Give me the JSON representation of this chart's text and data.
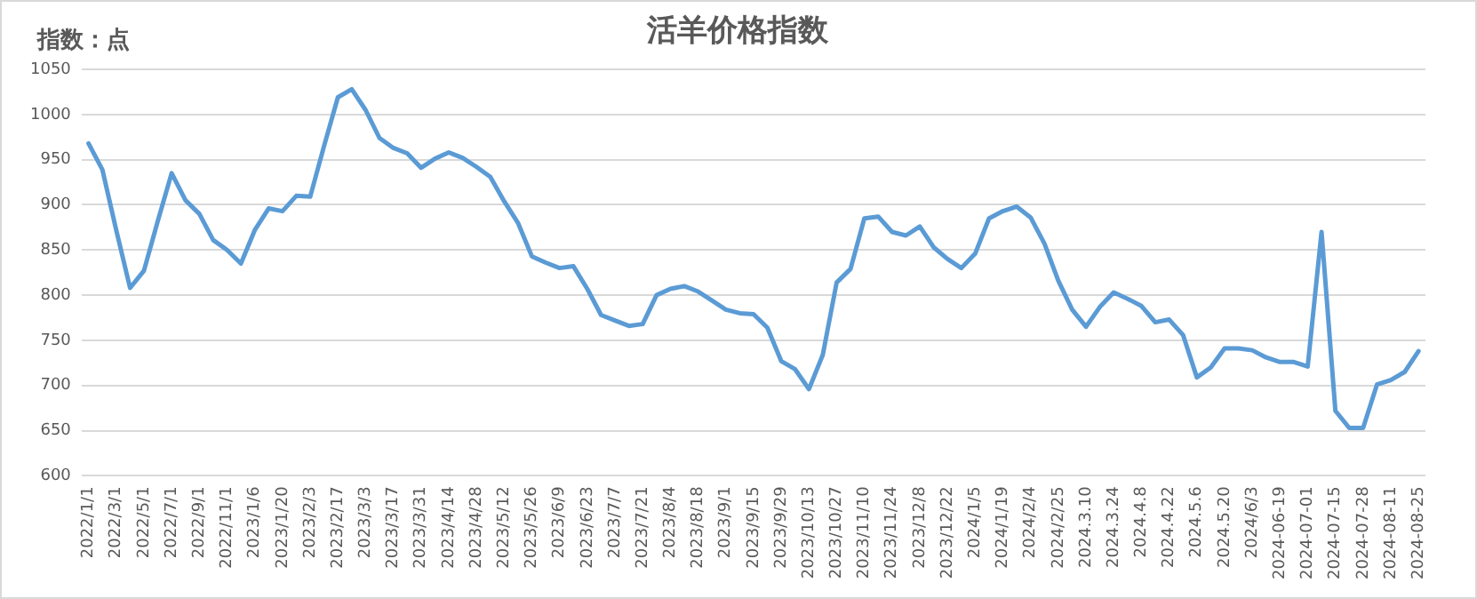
{
  "chart_data": {
    "type": "line",
    "title": "活羊价格指数",
    "ylabel": "指数：点",
    "categories": [
      "2022/1/1",
      null,
      "2022/3/1",
      null,
      "2022/5/1",
      null,
      "2022/7/1",
      null,
      "2022/9/1",
      null,
      "2022/11/1",
      null,
      "2023/1/6",
      null,
      "2023/1/20",
      null,
      "2023/2/3",
      null,
      "2023/2/17",
      null,
      "2023/3/3",
      null,
      "2023/3/17",
      null,
      "2023/3/31",
      null,
      "2023/4/14",
      null,
      "2023/4/28",
      null,
      "2023/5/12",
      null,
      "2023/5/26",
      null,
      "2023/6/9",
      null,
      "2023/6/23",
      null,
      "2023/7/7",
      null,
      "2023/7/21",
      null,
      "2023/8/4",
      null,
      "2023/8/18",
      null,
      "2023/9/1",
      null,
      "2023/9/15",
      null,
      "2023/9/29",
      null,
      "2023/10/13",
      null,
      "2023/10/27",
      null,
      "2023/11/10",
      null,
      "2023/11/24",
      null,
      "2023/12/8",
      null,
      "2023/12/22",
      null,
      "2024/1/5",
      null,
      "2024/1/19",
      null,
      "2024/2/4",
      null,
      "2024/2/25",
      null,
      "2024.3.10",
      null,
      "2024.3.24",
      null,
      "2024.4.8",
      null,
      "2024.4.22",
      null,
      "2024.5.6",
      null,
      "2024.5.20",
      null,
      "2024/6/3",
      null,
      "2024-06-19",
      null,
      "2024-07-01",
      null,
      "2024-07-15",
      null,
      "2024-07-28",
      null,
      "2024-08-11",
      null,
      "2024-08-25"
    ],
    "series": [
      {
        "color": "#5b9bd5",
        "values": [
          968,
          939,
          872,
          808,
          827,
          882,
          935,
          905,
          890,
          861,
          850,
          835,
          872,
          896,
          893,
          910,
          909,
          965,
          1019,
          1028,
          1005,
          974,
          963,
          957,
          941,
          951,
          958,
          952,
          942,
          931,
          904,
          880,
          843,
          836,
          830,
          832,
          807,
          778,
          772,
          766,
          768,
          800,
          807,
          810,
          804,
          794,
          784,
          780,
          779,
          764,
          727,
          718,
          696,
          734,
          814,
          829,
          885,
          887,
          870,
          866,
          876,
          853,
          840,
          830,
          846,
          885,
          893,
          898,
          886,
          857,
          816,
          784,
          765,
          787,
          803,
          796,
          788,
          770,
          773,
          756,
          709,
          720,
          741,
          741,
          739,
          731,
          726,
          726,
          721,
          870,
          672,
          653,
          653,
          701,
          706,
          715,
          738
        ]
      }
    ],
    "ylim": [
      600,
      1050
    ],
    "yticks": [
      600,
      650,
      700,
      750,
      800,
      850,
      900,
      950,
      1000,
      1050
    ],
    "grid": "y",
    "legend": false,
    "marker": "none",
    "line_style": "solid"
  }
}
